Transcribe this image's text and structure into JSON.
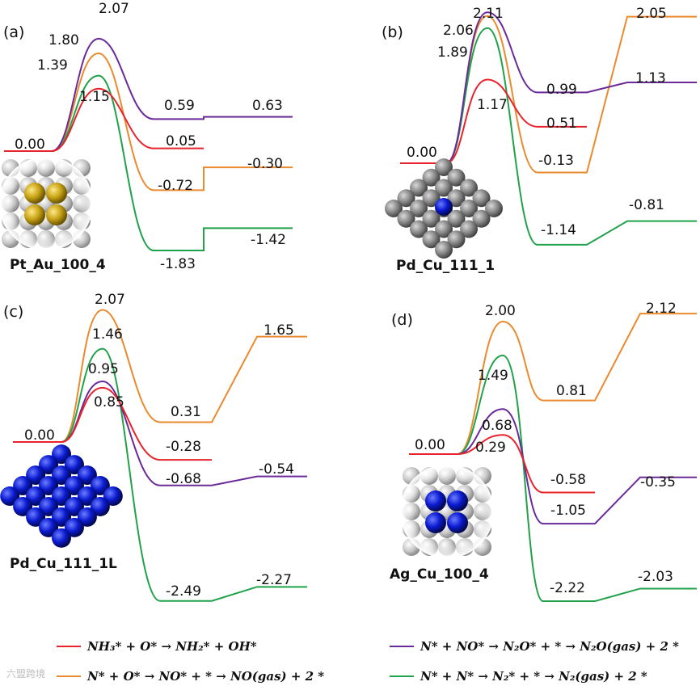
{
  "chart_data": [
    {
      "type": "line",
      "panel": "(a)",
      "surface": "Pt_Au_100_4",
      "states": [
        "initial",
        "transition",
        "intermediate",
        "final"
      ],
      "series": [
        {
          "name": "purple",
          "values": [
            0.0,
            2.07,
            0.59,
            0.63
          ],
          "labels": [
            "0.00",
            "2.07",
            "0.59",
            "0.63"
          ]
        },
        {
          "name": "orange",
          "values": [
            0.0,
            1.8,
            -0.72,
            -0.3
          ],
          "labels": [
            "",
            "1.80",
            "-0.72",
            "-0.30"
          ]
        },
        {
          "name": "green",
          "values": [
            0.0,
            1.39,
            -1.83,
            -1.42
          ],
          "labels": [
            "",
            "1.39",
            "-1.83",
            "-1.42"
          ]
        },
        {
          "name": "red",
          "values": [
            0.0,
            1.15,
            0.05
          ],
          "labels": [
            "",
            "1.15",
            "0.05"
          ]
        }
      ]
    },
    {
      "type": "line",
      "panel": "(b)",
      "surface": "Pd_Cu_111_1",
      "states": [
        "initial",
        "transition",
        "intermediate",
        "final"
      ],
      "series": [
        {
          "name": "purple",
          "values": [
            0.0,
            2.11,
            0.99,
            1.13
          ],
          "labels": [
            "0.00",
            "2.11",
            "0.99",
            "1.13"
          ]
        },
        {
          "name": "orange",
          "values": [
            0.0,
            2.06,
            -0.13,
            2.05
          ],
          "labels": [
            "",
            "2.06",
            "-0.13",
            "2.05"
          ]
        },
        {
          "name": "green",
          "values": [
            0.0,
            1.89,
            -1.14,
            -0.81
          ],
          "labels": [
            "",
            "1.89",
            "-1.14",
            "-0.81"
          ]
        },
        {
          "name": "red",
          "values": [
            0.0,
            1.17,
            0.51
          ],
          "labels": [
            "",
            "1.17",
            "0.51"
          ]
        }
      ]
    },
    {
      "type": "line",
      "panel": "(c)",
      "surface": "Pd_Cu_111_1L",
      "states": [
        "initial",
        "transition",
        "intermediate",
        "final"
      ],
      "series": [
        {
          "name": "orange",
          "values": [
            0.0,
            2.07,
            0.31,
            1.65
          ],
          "labels": [
            "0.00",
            "2.07",
            "0.31",
            "1.65"
          ]
        },
        {
          "name": "green",
          "values": [
            0.0,
            1.46,
            -2.49,
            -2.27
          ],
          "labels": [
            "",
            "1.46",
            "-2.49",
            "-2.27"
          ]
        },
        {
          "name": "purple",
          "values": [
            0.0,
            0.95,
            -0.68,
            -0.54
          ],
          "labels": [
            "",
            "0.95",
            "-0.68",
            "-0.54"
          ]
        },
        {
          "name": "red",
          "values": [
            0.0,
            0.85,
            -0.28
          ],
          "labels": [
            "",
            "0.85",
            "-0.28"
          ]
        }
      ]
    },
    {
      "type": "line",
      "panel": "(d)",
      "surface": "Ag_Cu_100_4",
      "states": [
        "initial",
        "transition",
        "intermediate",
        "final"
      ],
      "series": [
        {
          "name": "orange",
          "values": [
            0.0,
            2.0,
            0.81,
            2.12
          ],
          "labels": [
            "0.00",
            "2.00",
            "0.81",
            "2.12"
          ]
        },
        {
          "name": "green",
          "values": [
            0.0,
            1.49,
            -2.22,
            -2.03
          ],
          "labels": [
            "",
            "1.49",
            "-2.22",
            "-2.03"
          ]
        },
        {
          "name": "purple",
          "values": [
            0.0,
            0.68,
            -1.05,
            -0.35
          ],
          "labels": [
            "",
            "0.68",
            "-1.05",
            "-0.35"
          ]
        },
        {
          "name": "red",
          "values": [
            0.0,
            0.29,
            -0.58
          ],
          "labels": [
            "",
            "0.29",
            "-0.58"
          ]
        }
      ]
    }
  ],
  "legend": [
    {
      "series": "red",
      "label": "NH₃* + O* → NH₂* + OH*"
    },
    {
      "series": "purple",
      "label": "N* + NO* → N₂O* + * → N₂O(gas) + 2 *"
    },
    {
      "series": "orange",
      "label": "N* + O* → NO* + * → NO(gas) + 2 *"
    },
    {
      "series": "green",
      "label": "N* + N* → N₂* + * → N₂(gas) + 2 *"
    }
  ],
  "colors": {
    "red": "#e8232b",
    "purple": "#6a2a9a",
    "orange": "#ea8a2e",
    "green": "#1fa24a",
    "gold": "#c9a416",
    "blue": "#0a1ad0",
    "silver": "#b5b5b5",
    "gray": "#7a7a7a"
  },
  "watermark": "六盟跨境"
}
